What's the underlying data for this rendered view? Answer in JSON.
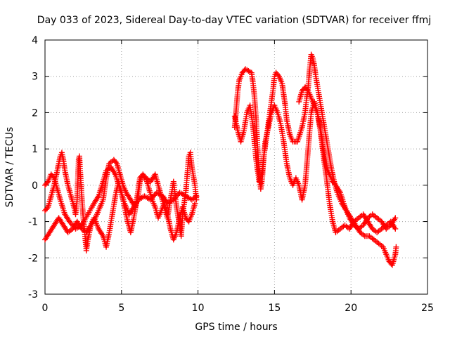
{
  "chart_data": {
    "type": "scatter",
    "title": "Day 033 of 2023, Sidereal Day-to-day VTEC variation (SDTVAR) for receiver ffmj",
    "xlabel": "GPS time / hours",
    "ylabel": "SDTVAR / TECUs",
    "xlim": [
      0,
      25
    ],
    "ylim": [
      -3,
      4
    ],
    "xticks": [
      0,
      5,
      10,
      15,
      20,
      25
    ],
    "yticks": [
      -3,
      -2,
      -1,
      0,
      1,
      2,
      3,
      4
    ],
    "grid": true,
    "marker": "+",
    "color": "#ff0000",
    "series": [
      {
        "name": "segment-1",
        "points": [
          [
            0.0,
            -0.7
          ],
          [
            0.2,
            -0.6
          ],
          [
            0.4,
            -0.3
          ],
          [
            0.6,
            0.0
          ],
          [
            0.8,
            0.4
          ],
          [
            1.0,
            0.8
          ],
          [
            1.1,
            0.9
          ],
          [
            1.2,
            0.7
          ],
          [
            1.3,
            0.4
          ],
          [
            1.5,
            0.0
          ],
          [
            1.7,
            -0.3
          ],
          [
            1.9,
            -0.6
          ],
          [
            2.0,
            -0.8
          ],
          [
            2.1,
            -0.4
          ],
          [
            2.15,
            0.2
          ],
          [
            2.2,
            0.7
          ],
          [
            2.25,
            0.8
          ],
          [
            2.3,
            0.4
          ],
          [
            2.4,
            -0.3
          ],
          [
            2.5,
            -0.9
          ],
          [
            2.6,
            -1.3
          ],
          [
            2.7,
            -1.8
          ],
          [
            2.8,
            -1.5
          ],
          [
            3.0,
            -1.1
          ],
          [
            3.3,
            -0.9
          ],
          [
            3.6,
            -0.6
          ],
          [
            3.8,
            -0.4
          ],
          [
            4.0,
            0.2
          ],
          [
            4.2,
            0.6
          ],
          [
            4.5,
            0.7
          ],
          [
            4.7,
            0.6
          ],
          [
            4.9,
            0.3
          ],
          [
            5.1,
            0.0
          ],
          [
            5.3,
            -0.2
          ],
          [
            5.6,
            -0.4
          ],
          [
            5.9,
            -0.6
          ],
          [
            6.1,
            -0.3
          ],
          [
            6.2,
            0.1
          ],
          [
            6.3,
            0.2
          ],
          [
            6.6,
            0.2
          ],
          [
            6.9,
            0.1
          ],
          [
            7.2,
            0.3
          ],
          [
            7.4,
            0.0
          ],
          [
            7.6,
            -0.3
          ],
          [
            7.8,
            -0.6
          ],
          [
            8.0,
            -0.9
          ],
          [
            8.2,
            -0.4
          ],
          [
            8.4,
            0.1
          ],
          [
            8.6,
            -0.6
          ],
          [
            8.8,
            -1.1
          ],
          [
            8.9,
            -1.4
          ],
          [
            9.0,
            -0.8
          ],
          [
            9.2,
            -0.2
          ],
          [
            9.4,
            0.8
          ],
          [
            9.5,
            0.9
          ],
          [
            9.6,
            0.5
          ],
          [
            9.8,
            0.0
          ],
          [
            9.9,
            -0.4
          ]
        ]
      },
      {
        "name": "segment-1-lower",
        "points": [
          [
            0.0,
            -1.5
          ],
          [
            0.3,
            -1.3
          ],
          [
            0.6,
            -1.1
          ],
          [
            0.9,
            -0.9
          ],
          [
            1.2,
            -1.1
          ],
          [
            1.5,
            -1.3
          ],
          [
            1.8,
            -1.2
          ],
          [
            2.1,
            -1.0
          ],
          [
            2.4,
            -1.2
          ],
          [
            2.7,
            -1.3
          ],
          [
            3.0,
            -1.1
          ],
          [
            3.2,
            -0.9
          ],
          [
            3.5,
            -1.2
          ],
          [
            3.8,
            -1.4
          ],
          [
            4.0,
            -1.7
          ],
          [
            4.2,
            -1.3
          ],
          [
            4.4,
            -0.8
          ],
          [
            4.6,
            -0.3
          ],
          [
            4.8,
            0.1
          ],
          [
            5.0,
            -0.2
          ],
          [
            5.2,
            -0.6
          ],
          [
            5.4,
            -1.0
          ],
          [
            5.6,
            -1.3
          ],
          [
            5.8,
            -0.9
          ],
          [
            6.0,
            -0.4
          ],
          [
            6.2,
            0.2
          ],
          [
            6.4,
            0.3
          ],
          [
            6.6,
            0.2
          ],
          [
            6.8,
            -0.1
          ],
          [
            7.0,
            -0.4
          ],
          [
            7.2,
            -0.6
          ],
          [
            7.4,
            -0.9
          ],
          [
            7.6,
            -0.7
          ],
          [
            7.8,
            -0.5
          ],
          [
            8.0,
            -0.8
          ],
          [
            8.2,
            -1.2
          ],
          [
            8.4,
            -1.5
          ],
          [
            8.6,
            -1.3
          ],
          [
            8.8,
            -0.9
          ],
          [
            9.0,
            -0.6
          ],
          [
            9.2,
            -0.9
          ],
          [
            9.4,
            -1.0
          ],
          [
            9.6,
            -0.8
          ],
          [
            9.8,
            -0.5
          ]
        ]
      },
      {
        "name": "segment-1-middle",
        "points": [
          [
            0.0,
            0.0
          ],
          [
            0.2,
            0.1
          ],
          [
            0.4,
            0.3
          ],
          [
            0.6,
            0.2
          ],
          [
            0.8,
            -0.1
          ],
          [
            1.0,
            -0.4
          ],
          [
            1.3,
            -0.8
          ],
          [
            1.6,
            -1.0
          ],
          [
            2.0,
            -1.2
          ],
          [
            2.4,
            -1.1
          ],
          [
            2.8,
            -0.8
          ],
          [
            3.2,
            -0.5
          ],
          [
            3.5,
            -0.3
          ],
          [
            3.8,
            0.1
          ],
          [
            4.0,
            0.4
          ],
          [
            4.3,
            0.5
          ],
          [
            4.6,
            0.3
          ],
          [
            4.9,
            -0.1
          ],
          [
            5.2,
            -0.5
          ],
          [
            5.5,
            -0.8
          ],
          [
            5.8,
            -0.6
          ],
          [
            6.1,
            -0.4
          ],
          [
            6.5,
            -0.3
          ],
          [
            6.9,
            -0.4
          ],
          [
            7.3,
            -0.2
          ],
          [
            7.7,
            -0.3
          ],
          [
            8.0,
            -0.5
          ],
          [
            8.4,
            -0.4
          ],
          [
            8.8,
            -0.2
          ],
          [
            9.2,
            -0.3
          ],
          [
            9.6,
            -0.4
          ],
          [
            9.9,
            -0.3
          ]
        ]
      },
      {
        "name": "segment-2",
        "points": [
          [
            12.4,
            1.6
          ],
          [
            12.5,
            2.1
          ],
          [
            12.6,
            2.6
          ],
          [
            12.7,
            2.9
          ],
          [
            12.9,
            3.1
          ],
          [
            13.1,
            3.2
          ],
          [
            13.3,
            3.15
          ],
          [
            13.5,
            3.1
          ],
          [
            13.6,
            2.8
          ],
          [
            13.7,
            2.4
          ],
          [
            13.8,
            1.8
          ],
          [
            13.9,
            1.0
          ],
          [
            14.0,
            0.3
          ],
          [
            14.1,
            -0.1
          ],
          [
            14.2,
            0.2
          ],
          [
            14.3,
            0.8
          ],
          [
            14.5,
            1.4
          ],
          [
            14.7,
            2.0
          ],
          [
            14.9,
            2.6
          ],
          [
            15.0,
            3.0
          ],
          [
            15.1,
            3.1
          ],
          [
            15.3,
            3.0
          ],
          [
            15.5,
            2.8
          ],
          [
            15.6,
            2.5
          ],
          [
            15.7,
            2.2
          ],
          [
            15.8,
            1.8
          ],
          [
            16.0,
            1.4
          ],
          [
            16.2,
            1.2
          ],
          [
            16.5,
            1.2
          ],
          [
            16.8,
            1.6
          ],
          [
            17.0,
            2.0
          ],
          [
            17.1,
            2.4
          ],
          [
            17.2,
            2.7
          ],
          [
            17.3,
            3.2
          ],
          [
            17.4,
            3.6
          ],
          [
            17.5,
            3.5
          ],
          [
            17.6,
            3.3
          ],
          [
            17.7,
            3.0
          ],
          [
            17.9,
            2.5
          ],
          [
            18.1,
            2.0
          ],
          [
            18.3,
            1.5
          ],
          [
            18.5,
            1.0
          ],
          [
            18.7,
            0.5
          ],
          [
            18.9,
            0.1
          ],
          [
            19.1,
            -0.2
          ],
          [
            19.4,
            -0.5
          ],
          [
            19.7,
            -0.7
          ],
          [
            20.0,
            -0.9
          ],
          [
            20.3,
            -1.1
          ],
          [
            20.6,
            -1.3
          ],
          [
            20.9,
            -1.4
          ],
          [
            21.2,
            -1.4
          ],
          [
            21.5,
            -1.5
          ],
          [
            21.8,
            -1.6
          ],
          [
            22.1,
            -1.7
          ],
          [
            22.3,
            -1.9
          ],
          [
            22.5,
            -2.1
          ],
          [
            22.7,
            -2.2
          ],
          [
            22.9,
            -1.9
          ],
          [
            22.95,
            -1.7
          ]
        ]
      },
      {
        "name": "segment-2-lower",
        "points": [
          [
            12.4,
            1.9
          ],
          [
            12.6,
            1.5
          ],
          [
            12.8,
            1.2
          ],
          [
            13.0,
            1.5
          ],
          [
            13.2,
            2.0
          ],
          [
            13.4,
            2.2
          ],
          [
            13.6,
            1.6
          ],
          [
            13.8,
            0.7
          ],
          [
            14.0,
            0.1
          ],
          [
            14.2,
            0.4
          ],
          [
            14.4,
            1.2
          ],
          [
            14.6,
            1.6
          ],
          [
            14.8,
            2.0
          ],
          [
            15.0,
            2.2
          ],
          [
            15.2,
            2.0
          ],
          [
            15.4,
            1.7
          ],
          [
            15.6,
            1.2
          ],
          [
            15.8,
            0.6
          ],
          [
            16.0,
            0.2
          ],
          [
            16.2,
            0.0
          ],
          [
            16.4,
            0.2
          ],
          [
            16.6,
            0.0
          ],
          [
            16.8,
            -0.4
          ],
          [
            17.0,
            0.0
          ],
          [
            17.2,
            1.0
          ],
          [
            17.4,
            2.0
          ],
          [
            17.6,
            2.3
          ],
          [
            17.8,
            2.0
          ],
          [
            18.0,
            1.5
          ],
          [
            18.2,
            0.8
          ],
          [
            18.4,
            0.2
          ],
          [
            18.6,
            -0.5
          ],
          [
            18.8,
            -1.0
          ],
          [
            19.0,
            -1.3
          ],
          [
            19.3,
            -1.2
          ],
          [
            19.6,
            -1.1
          ],
          [
            19.9,
            -1.2
          ],
          [
            20.2,
            -1.0
          ],
          [
            20.5,
            -0.9
          ],
          [
            20.8,
            -0.8
          ],
          [
            21.1,
            -1.0
          ],
          [
            21.4,
            -1.2
          ],
          [
            21.7,
            -1.3
          ],
          [
            22.0,
            -1.2
          ],
          [
            22.3,
            -1.1
          ],
          [
            22.6,
            -1.0
          ],
          [
            22.9,
            -1.2
          ]
        ]
      },
      {
        "name": "segment-2-middle",
        "points": [
          [
            16.6,
            2.3
          ],
          [
            16.8,
            2.6
          ],
          [
            17.0,
            2.7
          ],
          [
            17.2,
            2.6
          ],
          [
            17.4,
            2.4
          ],
          [
            17.6,
            2.2
          ],
          [
            17.8,
            2.0
          ],
          [
            18.0,
            1.6
          ],
          [
            18.2,
            1.0
          ],
          [
            18.4,
            0.5
          ],
          [
            18.6,
            0.3
          ],
          [
            18.8,
            0.1
          ],
          [
            19.0,
            0.0
          ],
          [
            19.3,
            -0.2
          ],
          [
            19.6,
            -0.6
          ],
          [
            19.9,
            -0.9
          ],
          [
            20.2,
            -1.1
          ],
          [
            20.5,
            -1.2
          ],
          [
            20.8,
            -1.1
          ],
          [
            21.1,
            -0.9
          ],
          [
            21.4,
            -0.8
          ],
          [
            21.7,
            -0.9
          ],
          [
            22.0,
            -1.0
          ],
          [
            22.3,
            -1.2
          ],
          [
            22.6,
            -1.1
          ],
          [
            22.9,
            -0.9
          ]
        ]
      }
    ]
  }
}
